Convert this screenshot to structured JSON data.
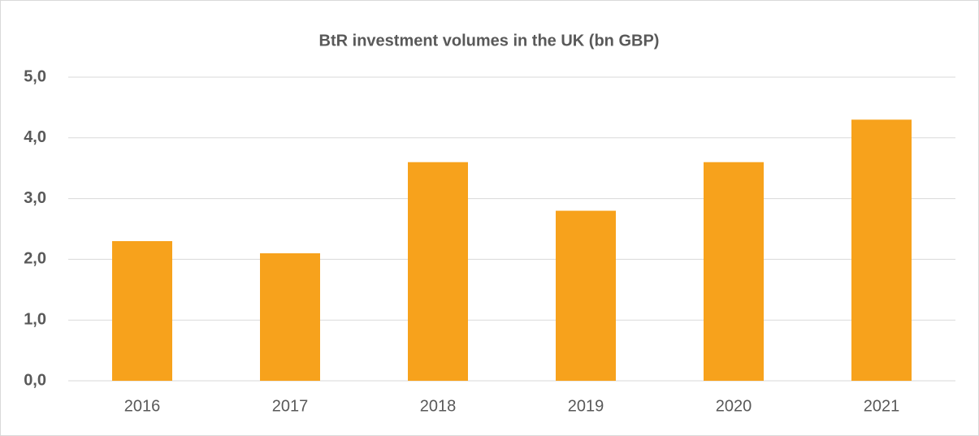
{
  "chart_data": {
    "type": "bar",
    "title": "BtR investment volumes in the UK (bn GBP)",
    "categories": [
      "2016",
      "2017",
      "2018",
      "2019",
      "2020",
      "2021"
    ],
    "values": [
      2.3,
      2.1,
      3.6,
      2.8,
      3.6,
      4.3
    ],
    "color": "#f7a21c",
    "ylim": [
      0,
      5
    ],
    "yticks": [
      {
        "value": 0,
        "label": "0,0"
      },
      {
        "value": 1,
        "label": "1,0"
      },
      {
        "value": 2,
        "label": "2,0"
      },
      {
        "value": 3,
        "label": "3,0"
      },
      {
        "value": 4,
        "label": "4,0"
      },
      {
        "value": 5,
        "label": "5,0"
      }
    ],
    "grid": true
  }
}
